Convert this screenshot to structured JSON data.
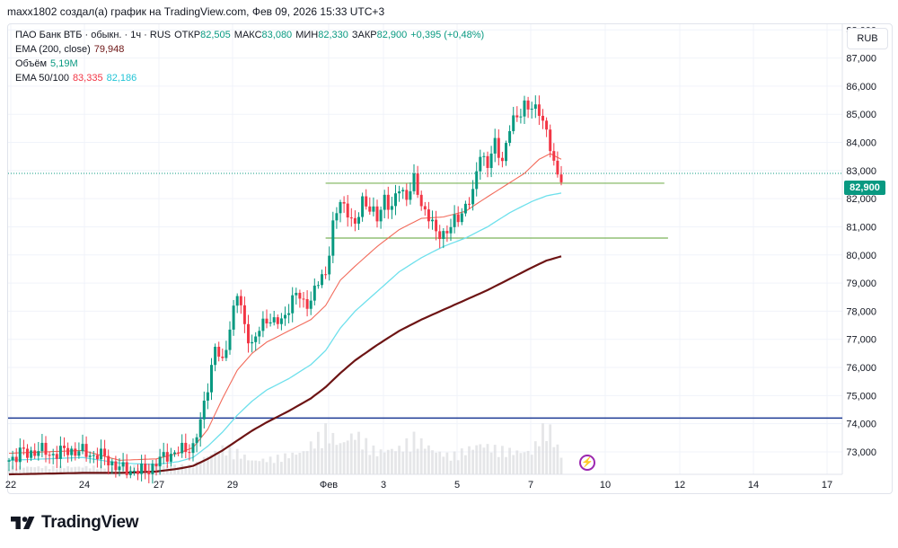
{
  "credit": "maxx1802 создал(а) график на TradingView.com, Фев 09, 2026 15:33 UTC+3",
  "legend": {
    "symbol": "ПАО Банк ВТБ · обыкн. · 1ч · RUS",
    "open_label": "ОТКР",
    "open": "82,505",
    "high_label": "МАКС",
    "high": "83,080",
    "low_label": "МИН",
    "low": "82,330",
    "close_label": "ЗАКР",
    "close": "82,900",
    "change": "+0,395 (+0,48%)",
    "ema200_label": "EMA (200, close)",
    "ema200_value": "79,948",
    "volume_label": "Объём",
    "volume_value": "5,19М",
    "ema50100_label": "EMA 50/100",
    "ema50_value": "83,335",
    "ema100_value": "82,186"
  },
  "currency_button": "RUB",
  "current_price_tag": "82,900",
  "event_icon": "lightning-icon",
  "brand": {
    "name": "TradingView",
    "logo_icon": "tradingview-logo-icon"
  },
  "colors": {
    "up": "#089981",
    "down": "#f23645",
    "ema50": "#f26b5b",
    "ema100": "#6ee0ec",
    "ema200": "#6d1414",
    "support": "#1d3a94",
    "levels": "#7cb35a",
    "price_line": "#089981"
  },
  "chart_data": {
    "type": "candlestick",
    "x_tick_labels": [
      "22",
      "24",
      "27",
      "29",
      "Фев",
      "3",
      "5",
      "7",
      "10",
      "12",
      "14",
      "17"
    ],
    "y_tick_labels": [
      "73,000",
      "74,000",
      "75,000",
      "76,000",
      "77,000",
      "78,000",
      "79,000",
      "80,000",
      "81,000",
      "82,000",
      "83,000",
      "84,000",
      "85,000",
      "86,000",
      "87,000",
      "88,000"
    ],
    "ylim": [
      72.2,
      88.2
    ],
    "grid": true,
    "candle_anchors": [
      [
        0,
        72.7
      ],
      [
        3,
        73.0
      ],
      [
        5,
        72.9
      ],
      [
        8,
        73.1
      ],
      [
        11,
        72.9
      ],
      [
        14,
        73.0
      ],
      [
        17,
        73.05
      ],
      [
        20,
        73.0
      ],
      [
        22,
        72.9
      ],
      [
        24,
        72.9
      ],
      [
        26,
        72.8
      ],
      [
        28,
        72.6
      ],
      [
        30,
        72.4
      ],
      [
        33,
        72.35
      ],
      [
        36,
        72.3
      ],
      [
        38,
        72.4
      ],
      [
        40,
        72.6
      ],
      [
        43,
        72.9
      ],
      [
        46,
        73.0
      ],
      [
        48,
        73.1
      ],
      [
        50,
        73.2
      ],
      [
        52,
        74.0
      ],
      [
        54,
        75.4
      ],
      [
        56,
        76.7
      ],
      [
        58,
        76.1
      ],
      [
        60,
        77.5
      ],
      [
        62,
        78.6
      ],
      [
        64,
        77.5
      ],
      [
        66,
        76.8
      ],
      [
        68,
        77.3
      ],
      [
        70,
        77.8
      ],
      [
        72,
        77.6
      ],
      [
        74,
        77.6
      ],
      [
        76,
        78.2
      ],
      [
        78,
        78.6
      ],
      [
        80,
        78.3
      ],
      [
        82,
        78.4
      ],
      [
        84,
        79.0
      ],
      [
        86,
        79.4
      ],
      [
        88,
        81.0
      ],
      [
        90,
        81.9
      ],
      [
        92,
        81.6
      ],
      [
        94,
        80.9
      ],
      [
        96,
        82.0
      ],
      [
        98,
        81.7
      ],
      [
        100,
        81.2
      ],
      [
        102,
        82.1
      ],
      [
        104,
        81.6
      ],
      [
        106,
        82.4
      ],
      [
        108,
        82.1
      ],
      [
        110,
        82.6
      ],
      [
        112,
        81.8
      ],
      [
        114,
        81.4
      ],
      [
        116,
        80.7
      ],
      [
        118,
        80.8
      ],
      [
        120,
        81.0
      ],
      [
        122,
        81.3
      ],
      [
        124,
        81.8
      ],
      [
        126,
        82.1
      ],
      [
        128,
        83.7
      ],
      [
        130,
        83.2
      ],
      [
        132,
        83.9
      ],
      [
        134,
        83.4
      ],
      [
        136,
        84.5
      ],
      [
        138,
        84.9
      ],
      [
        140,
        85.4
      ],
      [
        142,
        85.1
      ],
      [
        144,
        85.2
      ],
      [
        146,
        84.4
      ],
      [
        148,
        83.1
      ],
      [
        150,
        82.8
      ]
    ],
    "ema50_anchors": [
      [
        0,
        72.95
      ],
      [
        20,
        73.05
      ],
      [
        30,
        72.7
      ],
      [
        40,
        72.75
      ],
      [
        46,
        72.95
      ],
      [
        50,
        73.15
      ],
      [
        54,
        73.8
      ],
      [
        58,
        74.9
      ],
      [
        62,
        75.9
      ],
      [
        66,
        76.5
      ],
      [
        70,
        76.9
      ],
      [
        76,
        77.3
      ],
      [
        82,
        77.7
      ],
      [
        86,
        78.2
      ],
      [
        90,
        79.1
      ],
      [
        94,
        79.6
      ],
      [
        100,
        80.3
      ],
      [
        106,
        80.9
      ],
      [
        112,
        81.3
      ],
      [
        118,
        81.35
      ],
      [
        124,
        81.55
      ],
      [
        128,
        81.9
      ],
      [
        134,
        82.4
      ],
      [
        140,
        82.9
      ],
      [
        144,
        83.4
      ],
      [
        147,
        83.6
      ],
      [
        150,
        83.4
      ]
    ],
    "ema100_anchors": [
      [
        0,
        72.7
      ],
      [
        20,
        72.8
      ],
      [
        30,
        72.6
      ],
      [
        40,
        72.55
      ],
      [
        46,
        72.65
      ],
      [
        50,
        72.8
      ],
      [
        54,
        73.2
      ],
      [
        58,
        73.7
      ],
      [
        62,
        74.3
      ],
      [
        66,
        74.8
      ],
      [
        70,
        75.2
      ],
      [
        76,
        75.6
      ],
      [
        82,
        76.1
      ],
      [
        86,
        76.6
      ],
      [
        90,
        77.4
      ],
      [
        94,
        78.0
      ],
      [
        100,
        78.7
      ],
      [
        106,
        79.4
      ],
      [
        112,
        79.9
      ],
      [
        118,
        80.3
      ],
      [
        124,
        80.6
      ],
      [
        130,
        81.0
      ],
      [
        136,
        81.5
      ],
      [
        142,
        81.9
      ],
      [
        146,
        82.1
      ],
      [
        150,
        82.2
      ]
    ],
    "ema200_anchors": [
      [
        0,
        72.2
      ],
      [
        20,
        72.25
      ],
      [
        30,
        72.25
      ],
      [
        40,
        72.3
      ],
      [
        46,
        72.4
      ],
      [
        50,
        72.5
      ],
      [
        54,
        72.75
      ],
      [
        58,
        73.05
      ],
      [
        62,
        73.4
      ],
      [
        66,
        73.75
      ],
      [
        70,
        74.05
      ],
      [
        76,
        74.45
      ],
      [
        82,
        74.9
      ],
      [
        86,
        75.3
      ],
      [
        90,
        75.8
      ],
      [
        94,
        76.25
      ],
      [
        100,
        76.8
      ],
      [
        106,
        77.3
      ],
      [
        112,
        77.7
      ],
      [
        118,
        78.05
      ],
      [
        124,
        78.4
      ],
      [
        130,
        78.75
      ],
      [
        136,
        79.15
      ],
      [
        142,
        79.55
      ],
      [
        146,
        79.8
      ],
      [
        150,
        79.95
      ]
    ],
    "volume_anchors": [
      [
        0,
        0.1
      ],
      [
        20,
        0.1
      ],
      [
        40,
        0.12
      ],
      [
        50,
        0.12
      ],
      [
        54,
        0.25
      ],
      [
        58,
        0.35
      ],
      [
        62,
        0.3
      ],
      [
        66,
        0.18
      ],
      [
        70,
        0.2
      ],
      [
        80,
        0.3
      ],
      [
        86,
        0.6
      ],
      [
        90,
        0.4
      ],
      [
        94,
        0.55
      ],
      [
        100,
        0.3
      ],
      [
        106,
        0.35
      ],
      [
        110,
        0.5
      ],
      [
        116,
        0.3
      ],
      [
        120,
        0.25
      ],
      [
        128,
        0.4
      ],
      [
        132,
        0.35
      ],
      [
        138,
        0.3
      ],
      [
        142,
        0.3
      ],
      [
        146,
        0.7
      ],
      [
        150,
        0.25
      ]
    ],
    "levels": [
      {
        "name": "support",
        "price": 74.2,
        "from_bar": 0,
        "to_bar": 189
      },
      {
        "name": "range-top",
        "price": 82.55,
        "from_bar": 86,
        "to_bar": 178
      },
      {
        "name": "range-bottom",
        "price": 80.6,
        "from_bar": 86,
        "to_bar": 179
      }
    ],
    "last_price": 82.9
  }
}
